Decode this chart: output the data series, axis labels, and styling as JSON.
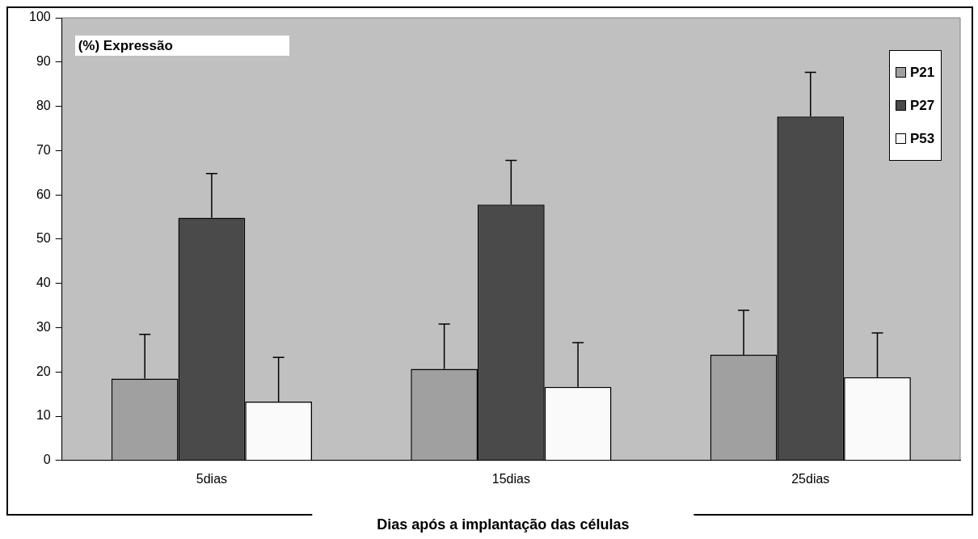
{
  "chart_data": {
    "type": "bar",
    "ylabel": "(%) Expressão",
    "xlabel": "Dias após a implantação das células",
    "categories": [
      "5dias",
      "15dias",
      "25dias"
    ],
    "series": [
      {
        "name": "P21",
        "color": "#a0a0a0",
        "values": [
          18.5,
          20.7,
          23.9
        ],
        "errors": [
          [
            18.5,
            28.5
          ],
          [
            20.7,
            30.8
          ],
          [
            23.9,
            33.9
          ]
        ]
      },
      {
        "name": "P27",
        "color": "#4a4a4a",
        "values": [
          54.8,
          57.8,
          77.7
        ],
        "errors": [
          [
            54.8,
            64.8
          ],
          [
            57.8,
            67.8
          ],
          [
            77.7,
            87.7
          ]
        ]
      },
      {
        "name": "P53",
        "color": "#fafafa",
        "values": [
          13.3,
          16.6,
          18.8
        ],
        "errors": [
          [
            13.3,
            23.3
          ],
          [
            16.6,
            26.6
          ],
          [
            18.8,
            28.8
          ]
        ]
      }
    ],
    "ylim": [
      0,
      100
    ],
    "yticks": [
      0,
      10,
      20,
      30,
      40,
      50,
      60,
      70,
      80,
      90,
      100
    ],
    "grid": false,
    "legend": "top right"
  }
}
